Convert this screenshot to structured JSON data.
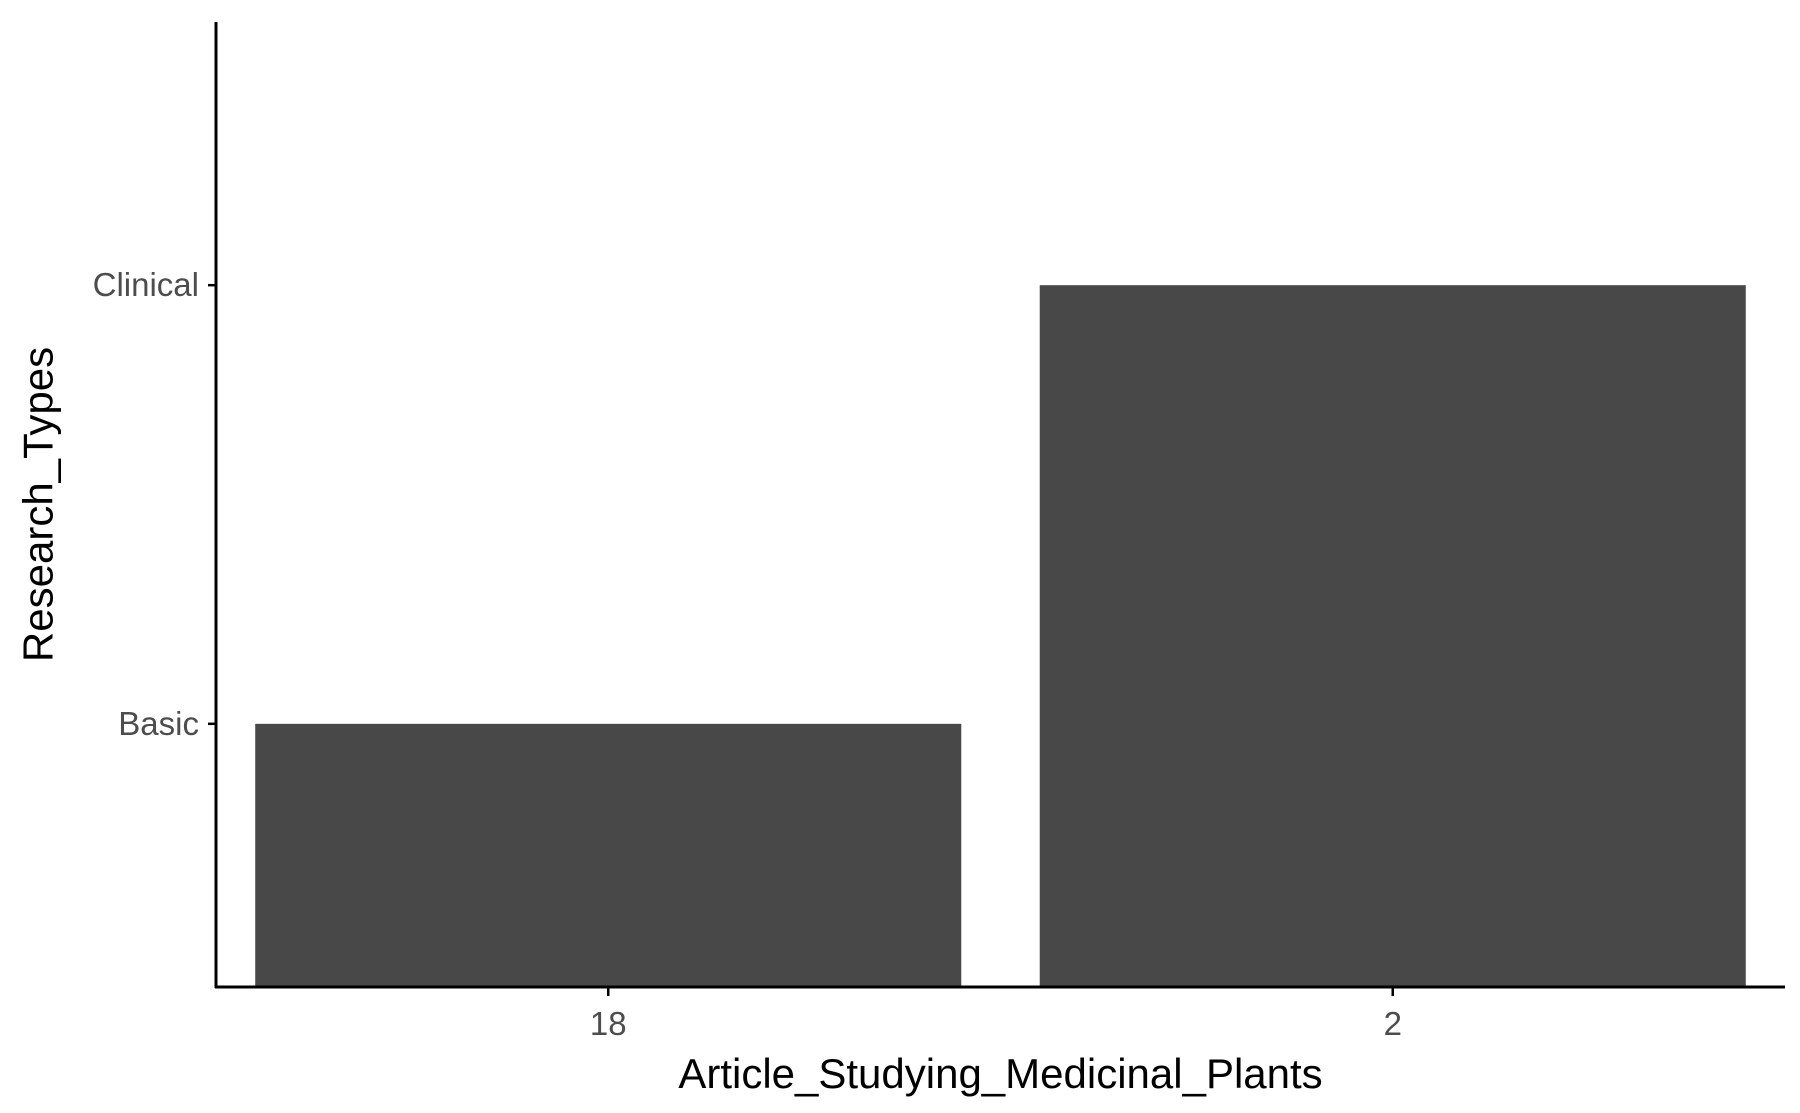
{
  "chart_data": {
    "type": "bar",
    "categories": [
      "18",
      "2"
    ],
    "y_categories": [
      "Basic",
      "Clinical"
    ],
    "values": [
      "Basic",
      "Clinical"
    ],
    "xlabel": "Article_Studying_Medicinal_Plants",
    "ylabel": "Research_Types",
    "grid": false,
    "legend": "none",
    "bar_color": "#484848",
    "axis_color": "#000000",
    "tick_label_color": "#4d4d4d"
  }
}
